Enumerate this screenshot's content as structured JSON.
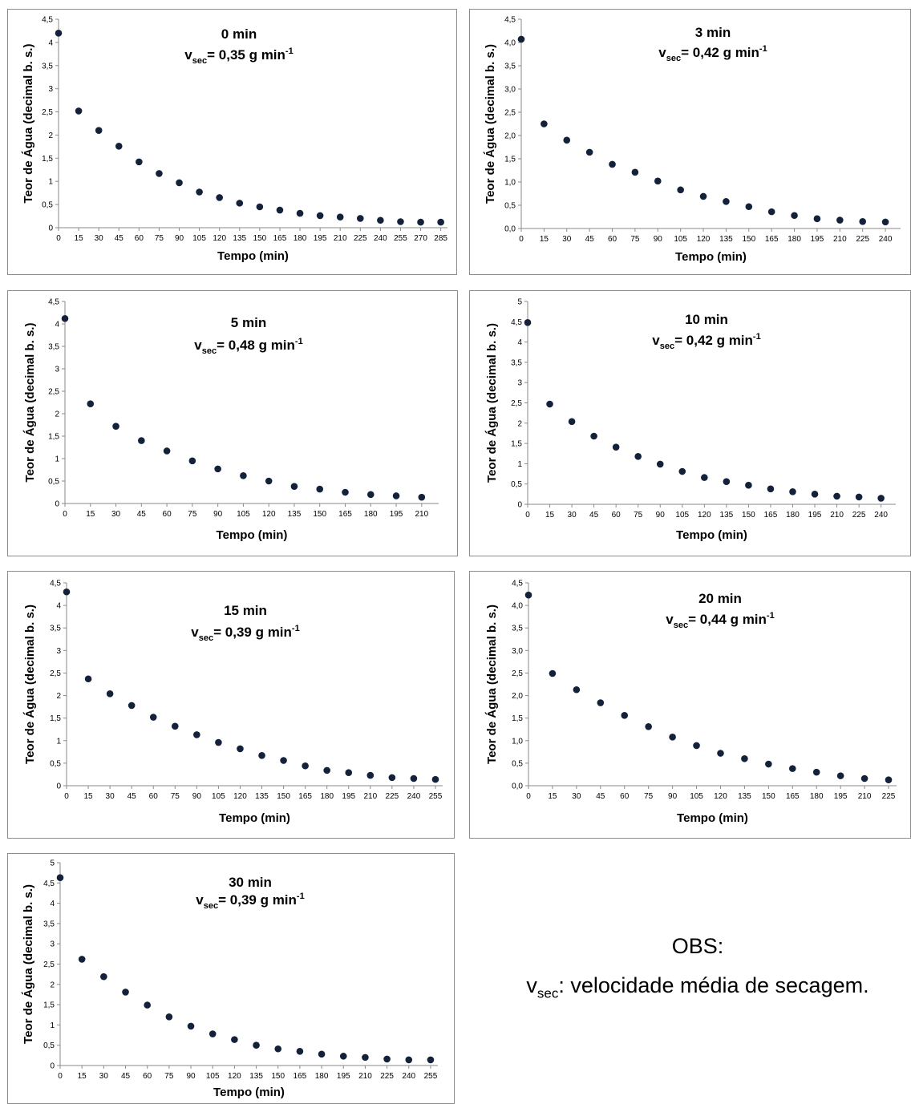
{
  "chart_data": [
    {
      "type": "scatter",
      "title": "0 min",
      "rate": {
        "v": "v",
        "sub": "sec",
        "text": "= 0,35 g min",
        "sup": "-1"
      },
      "xlabel": "Tempo (min)",
      "ylabel": "Teor de Água (decimal b. s.)",
      "xlim": [
        0,
        290
      ],
      "ylim": [
        0,
        4.5
      ],
      "xticks": [
        0,
        15,
        30,
        45,
        60,
        75,
        90,
        105,
        120,
        135,
        150,
        165,
        180,
        195,
        210,
        225,
        240,
        255,
        270,
        285
      ],
      "yticks": [
        "0",
        "0,5",
        "1",
        "1,5",
        "2",
        "2,5",
        "3",
        "3,5",
        "4",
        "4,5"
      ],
      "x": [
        0,
        15,
        30,
        45,
        60,
        75,
        90,
        105,
        120,
        135,
        150,
        165,
        180,
        195,
        210,
        225,
        240,
        255,
        270,
        285
      ],
      "y": [
        4.2,
        2.52,
        2.1,
        1.76,
        1.42,
        1.17,
        0.97,
        0.77,
        0.65,
        0.53,
        0.45,
        0.38,
        0.31,
        0.26,
        0.23,
        0.2,
        0.16,
        0.13,
        0.12,
        0.12
      ],
      "color": "#13213a"
    },
    {
      "type": "scatter",
      "title": "3 min",
      "rate": {
        "v": "v",
        "sub": "sec",
        "text": "= 0,42 g min",
        "sup": "-1"
      },
      "xlabel": "Tempo (min)",
      "ylabel": "Teor de Água (decimal b. s.)",
      "xlim": [
        0,
        250
      ],
      "ylim": [
        0,
        4.5
      ],
      "xticks": [
        0,
        15,
        30,
        45,
        60,
        75,
        90,
        105,
        120,
        135,
        150,
        165,
        180,
        195,
        210,
        225,
        240
      ],
      "yticks": [
        "0,0",
        "0,5",
        "1,0",
        "1,5",
        "2,0",
        "2,5",
        "3,0",
        "3,5",
        "4,0",
        "4,5"
      ],
      "x": [
        0,
        15,
        30,
        45,
        60,
        75,
        90,
        105,
        120,
        135,
        150,
        165,
        180,
        195,
        210,
        225,
        240
      ],
      "y": [
        4.07,
        2.25,
        1.9,
        1.64,
        1.38,
        1.21,
        1.02,
        0.83,
        0.69,
        0.58,
        0.47,
        0.36,
        0.28,
        0.21,
        0.18,
        0.15,
        0.14
      ],
      "color": "#13213a"
    },
    {
      "type": "scatter",
      "title": "5 min",
      "rate": {
        "v": "v",
        "sub": "sec",
        "text": "= 0,48 g min",
        "sup": "-1"
      },
      "xlabel": "Tempo (min)",
      "ylabel": "Teor de Água (decimal b. s.)",
      "xlim": [
        0,
        220
      ],
      "ylim": [
        0,
        4.5
      ],
      "xticks": [
        0,
        15,
        30,
        45,
        60,
        75,
        90,
        105,
        120,
        135,
        150,
        165,
        180,
        195,
        210
      ],
      "yticks": [
        "0",
        "0,5",
        "1",
        "1,5",
        "2",
        "2,5",
        "3",
        "3,5",
        "4",
        "4,5"
      ],
      "x": [
        0,
        15,
        30,
        45,
        60,
        75,
        90,
        105,
        120,
        135,
        150,
        165,
        180,
        195,
        210
      ],
      "y": [
        4.12,
        2.22,
        1.72,
        1.4,
        1.17,
        0.95,
        0.77,
        0.62,
        0.5,
        0.38,
        0.32,
        0.25,
        0.2,
        0.17,
        0.14
      ],
      "color": "#13213a"
    },
    {
      "type": "scatter",
      "title": "10 min",
      "rate": {
        "v": "v",
        "sub": "sec",
        "text": "= 0,42 g min",
        "sup": "-1"
      },
      "xlabel": "Tempo (min)",
      "ylabel": "Teor de Água (decimal b. s.)",
      "xlim": [
        0,
        250
      ],
      "ylim": [
        0,
        5
      ],
      "xticks": [
        0,
        15,
        30,
        45,
        60,
        75,
        90,
        105,
        120,
        135,
        150,
        165,
        180,
        195,
        210,
        225,
        240
      ],
      "yticks": [
        "0",
        "0,5",
        "1",
        "1,5",
        "2",
        "2,5",
        "3",
        "3,5",
        "4",
        "4,5",
        "5"
      ],
      "x": [
        0,
        15,
        30,
        45,
        60,
        75,
        90,
        105,
        120,
        135,
        150,
        165,
        180,
        195,
        210,
        225,
        240
      ],
      "y": [
        4.48,
        2.47,
        2.04,
        1.68,
        1.41,
        1.18,
        0.99,
        0.81,
        0.66,
        0.56,
        0.47,
        0.38,
        0.31,
        0.25,
        0.2,
        0.18,
        0.15
      ],
      "color": "#13213a"
    },
    {
      "type": "scatter",
      "title": "15 min",
      "rate": {
        "v": "v",
        "sub": "sec",
        "text": "= 0,39 g min",
        "sup": "-1"
      },
      "xlabel": "Tempo (min)",
      "ylabel": "Teor de Água (decimal b. s.)",
      "xlim": [
        0,
        260
      ],
      "ylim": [
        0,
        4.5
      ],
      "xticks": [
        0,
        15,
        30,
        45,
        60,
        75,
        90,
        105,
        120,
        135,
        150,
        165,
        180,
        195,
        210,
        225,
        240,
        255
      ],
      "yticks": [
        "0",
        "0,5",
        "1",
        "1,5",
        "2",
        "2,5",
        "3",
        "3,5",
        "4",
        "4,5"
      ],
      "x": [
        0,
        15,
        30,
        45,
        60,
        75,
        90,
        105,
        120,
        135,
        150,
        165,
        180,
        195,
        210,
        225,
        240,
        255
      ],
      "y": [
        4.3,
        2.37,
        2.04,
        1.78,
        1.52,
        1.32,
        1.13,
        0.96,
        0.82,
        0.67,
        0.56,
        0.44,
        0.34,
        0.29,
        0.23,
        0.18,
        0.16,
        0.14
      ],
      "color": "#13213a"
    },
    {
      "type": "scatter",
      "title": "20 min",
      "rate": {
        "v": "v",
        "sub": "sec",
        "text": "= 0,44 g min",
        "sup": "-1"
      },
      "xlabel": "Tempo (min)",
      "ylabel": "Teor de Água (decimal b. s.)",
      "xlim": [
        0,
        230
      ],
      "ylim": [
        0,
        4.5
      ],
      "xticks": [
        0,
        15,
        30,
        45,
        60,
        75,
        90,
        105,
        120,
        135,
        150,
        165,
        180,
        195,
        210,
        225
      ],
      "yticks": [
        "0,0",
        "0,5",
        "1,0",
        "1,5",
        "2,0",
        "2,5",
        "3,0",
        "3,5",
        "4,0",
        "4,5"
      ],
      "x": [
        0,
        15,
        30,
        45,
        60,
        75,
        90,
        105,
        120,
        135,
        150,
        165,
        180,
        195,
        210,
        225
      ],
      "y": [
        4.23,
        2.49,
        2.13,
        1.84,
        1.56,
        1.31,
        1.08,
        0.89,
        0.72,
        0.6,
        0.48,
        0.38,
        0.3,
        0.22,
        0.16,
        0.13
      ],
      "color": "#13213a"
    },
    {
      "type": "scatter",
      "title": "30 min",
      "rate": {
        "v": "v",
        "sub": "sec",
        "text": "= 0,39 g min",
        "sup": "-1"
      },
      "xlabel": "Tempo (min)",
      "ylabel": "Teor de Água (decimal b. s.)",
      "xlim": [
        0,
        260
      ],
      "ylim": [
        0,
        5
      ],
      "xticks": [
        0,
        15,
        30,
        45,
        60,
        75,
        90,
        105,
        120,
        135,
        150,
        165,
        180,
        195,
        210,
        225,
        240,
        255
      ],
      "yticks": [
        "0",
        "0,5",
        "1",
        "1,5",
        "2",
        "2,5",
        "3",
        "3,5",
        "4",
        "4,5",
        "5"
      ],
      "x": [
        0,
        15,
        30,
        45,
        60,
        75,
        90,
        105,
        120,
        135,
        150,
        165,
        180,
        195,
        210,
        225,
        240,
        255
      ],
      "y": [
        4.63,
        2.62,
        2.19,
        1.81,
        1.49,
        1.2,
        0.97,
        0.78,
        0.64,
        0.5,
        0.41,
        0.35,
        0.28,
        0.23,
        0.2,
        0.16,
        0.14,
        0.14
      ],
      "color": "#13213a"
    }
  ],
  "note": {
    "title": "OBS:",
    "v": "v",
    "sub": "sec",
    "text": ": velocidade média de secagem."
  }
}
